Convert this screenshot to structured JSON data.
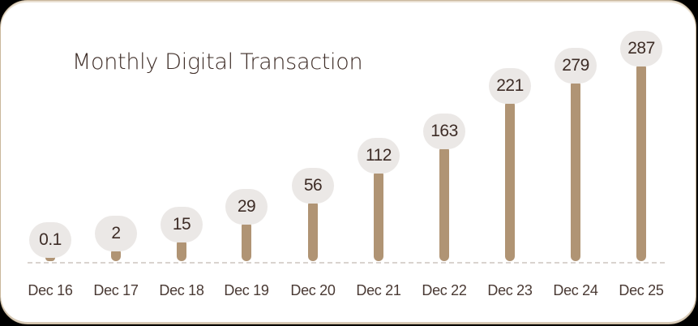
{
  "card": {
    "title": "Monthly Digital Transaction"
  },
  "colors": {
    "bar": "#b09474",
    "bubble": "#ebe8e6",
    "text": "#3d2c26",
    "baseline": "#d9d3cf"
  },
  "chart_data": {
    "type": "bar",
    "title": "Monthly Digital Transaction",
    "xlabel": "",
    "ylabel": "",
    "categories": [
      "Dec 16",
      "Dec 17",
      "Dec 18",
      "Dec 19",
      "Dec 20",
      "Dec 21",
      "Dec 22",
      "Dec 23",
      "Dec 24",
      "Dec 25"
    ],
    "values": [
      0.1,
      2,
      15,
      29,
      56,
      112,
      163,
      221,
      279,
      287
    ],
    "value_labels": [
      "0.1",
      "2",
      "15",
      "29",
      "56",
      "112",
      "163",
      "221",
      "279",
      "287"
    ],
    "grid": false,
    "legend": "none",
    "baseline": "dashed"
  },
  "layout": {
    "centers": [
      61,
      142,
      223,
      303,
      385,
      466,
      547,
      628,
      709,
      790
    ],
    "bar_heights": [
      8,
      16,
      27,
      49,
      75,
      112,
      142,
      198,
      223,
      244
    ]
  }
}
